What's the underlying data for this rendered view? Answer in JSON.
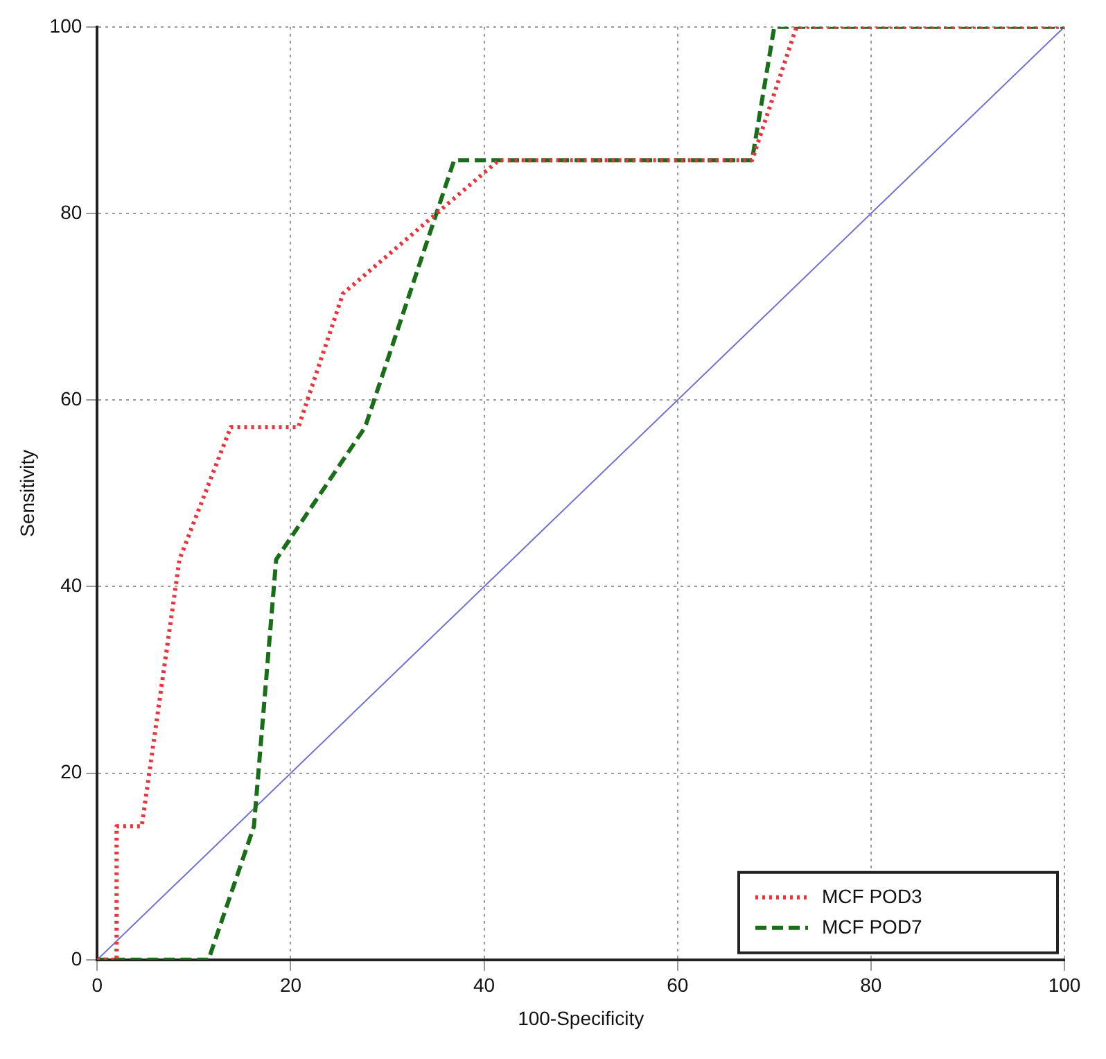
{
  "chart_data": {
    "type": "line",
    "xlabel": "100-Specificity",
    "ylabel": "Sensitivity",
    "xlim": [
      0,
      100
    ],
    "ylim": [
      0,
      100
    ],
    "xticks": [
      0,
      20,
      40,
      60,
      80,
      100
    ],
    "yticks": [
      0,
      20,
      40,
      60,
      80,
      100
    ],
    "grid": true,
    "legend": "bottom right",
    "series": [
      {
        "name": "MCF POD3",
        "color": "#e8343c",
        "line_style": "dotted",
        "x": [
          0,
          2,
          2,
          4.6,
          8.5,
          13.8,
          20.8,
          25.4,
          41.5,
          67.7,
          72.3,
          100
        ],
        "values": [
          0,
          0,
          14.3,
          14.3,
          42.9,
          57.1,
          57.1,
          71.4,
          85.7,
          85.7,
          100,
          100
        ]
      },
      {
        "name": "MCF POD7",
        "color": "#1a6e1a",
        "line_style": "dashed",
        "x": [
          0,
          11.5,
          16.2,
          18.5,
          27.7,
          36.9,
          67.7,
          70,
          100
        ],
        "values": [
          0,
          0,
          14.3,
          42.9,
          57.1,
          85.7,
          85.7,
          100,
          100
        ]
      },
      {
        "color": "#7070d0",
        "line_style": "solid",
        "x": [
          0,
          100
        ],
        "values": [
          0,
          100
        ]
      }
    ]
  }
}
